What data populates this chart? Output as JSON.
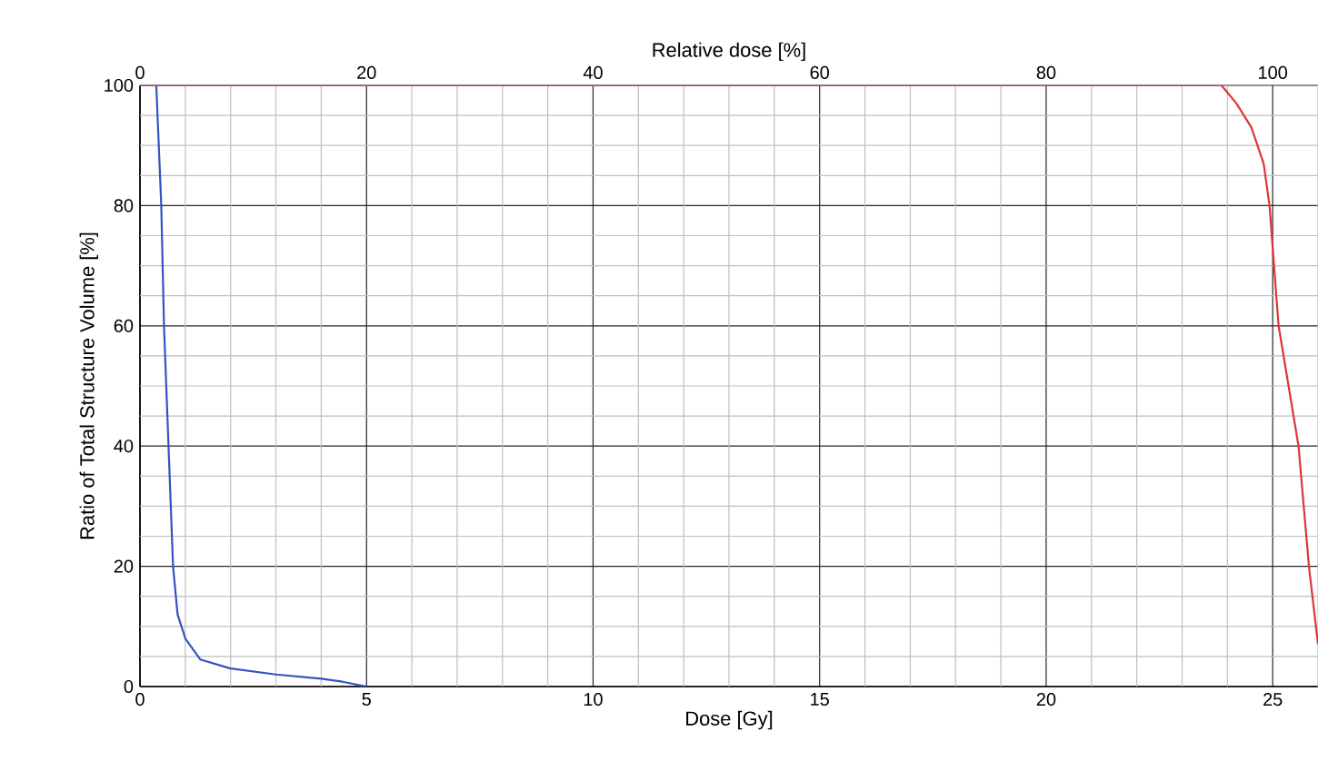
{
  "chart_data": {
    "type": "line",
    "xlabel": "Dose [Gy]",
    "ylabel": "Ratio of Total Structure Volume [%]",
    "x2label": "Relative dose [%]",
    "xlim": [
      0,
      26
    ],
    "ylim": [
      0,
      100
    ],
    "x2lim": [
      0,
      104
    ],
    "xticks": [
      0,
      {
        "value": 1,
        "label": null
      },
      {
        "value": 2,
        "label": null
      },
      {
        "value": 3,
        "label": null
      },
      {
        "value": 4,
        "label": null
      },
      5,
      {
        "value": 6,
        "label": null
      },
      {
        "value": 7,
        "label": null
      },
      {
        "value": 8,
        "label": null
      },
      {
        "value": 9,
        "label": null
      },
      10,
      {
        "value": 11,
        "label": null
      },
      {
        "value": 12,
        "label": null
      },
      {
        "value": 13,
        "label": null
      },
      {
        "value": 14,
        "label": null
      },
      15,
      {
        "value": 16,
        "label": null
      },
      {
        "value": 17,
        "label": null
      },
      {
        "value": 18,
        "label": null
      },
      {
        "value": 19,
        "label": null
      },
      20,
      {
        "value": 21,
        "label": null
      },
      {
        "value": 22,
        "label": null
      },
      {
        "value": 23,
        "label": null
      },
      {
        "value": 24,
        "label": null
      },
      25,
      {
        "value": 26,
        "label": null
      }
    ],
    "yticks": [
      0,
      {
        "value": 5,
        "label": null
      },
      {
        "value": 10,
        "label": null
      },
      {
        "value": 15,
        "label": null
      },
      20,
      {
        "value": 25,
        "label": null
      },
      {
        "value": 30,
        "label": null
      },
      {
        "value": 35,
        "label": null
      },
      40,
      {
        "value": 45,
        "label": null
      },
      {
        "value": 50,
        "label": null
      },
      {
        "value": 55,
        "label": null
      },
      60,
      {
        "value": 65,
        "label": null
      },
      {
        "value": 70,
        "label": null
      },
      {
        "value": 75,
        "label": null
      },
      80,
      {
        "value": 85,
        "label": null
      },
      {
        "value": 90,
        "label": null
      },
      {
        "value": 95,
        "label": null
      },
      100
    ],
    "x2ticks": [
      0,
      20,
      40,
      60,
      80,
      100
    ],
    "grid": true,
    "marker": "none",
    "line_style": "solid",
    "series": [
      {
        "color": "#3352c4",
        "x": [
          0.36,
          0.47,
          0.53,
          0.63,
          0.73,
          0.83,
          1.0,
          1.33,
          2.0,
          3.0,
          4.0,
          4.47,
          5.0
        ],
        "values": [
          100,
          80,
          60,
          40,
          20,
          12,
          8,
          4.5,
          3,
          2,
          1.3,
          0.8,
          0
        ]
      },
      {
        "color": "#e03434",
        "x": [
          0,
          23.87,
          24.2,
          24.53,
          24.8,
          24.93,
          25.13,
          25.57,
          25.8,
          26.0
        ],
        "values": [
          100,
          100,
          97,
          93,
          87,
          80,
          60,
          40,
          20,
          7
        ]
      }
    ]
  }
}
